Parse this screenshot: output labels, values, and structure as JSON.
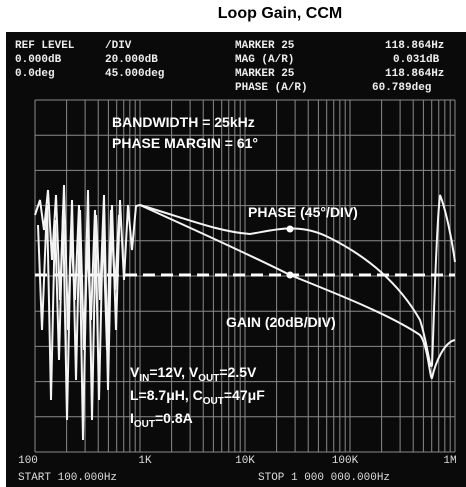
{
  "title": "Loop Gain, CCM",
  "header": [
    [
      "REF LEVEL",
      "/DIV",
      "MARKER 25",
      "118.864Hz"
    ],
    [
      "0.000dB",
      "20.000dB",
      "MAG (A/R)",
      "0.031dB"
    ],
    [
      "0.0deg",
      "45.000deg",
      "MARKER 25",
      "118.864Hz"
    ],
    [
      "PHASE (A/R)",
      "60.789deg"
    ]
  ],
  "annotations": {
    "bandwidth": "BANDWIDTH = 25kHz",
    "phase_margin": "PHASE MARGIN = 61°",
    "phase_label": "PHASE (45°/DIV)",
    "gain_label": "GAIN (20dB/DIV)"
  },
  "conditions": [
    [
      "V",
      "IN",
      "=12V, V",
      "OUT",
      "=2.5V"
    ],
    [
      "L=8.7μH, C",
      "OUT",
      "=47μF"
    ],
    [
      "I",
      "OUT",
      "=0.8A"
    ]
  ],
  "x_ticks": [
    "100",
    "1K",
    "10K",
    "100K",
    "1M"
  ],
  "footer": {
    "start": "START 100.000Hz",
    "stop": "STOP 1 000 000.000Hz"
  }
}
